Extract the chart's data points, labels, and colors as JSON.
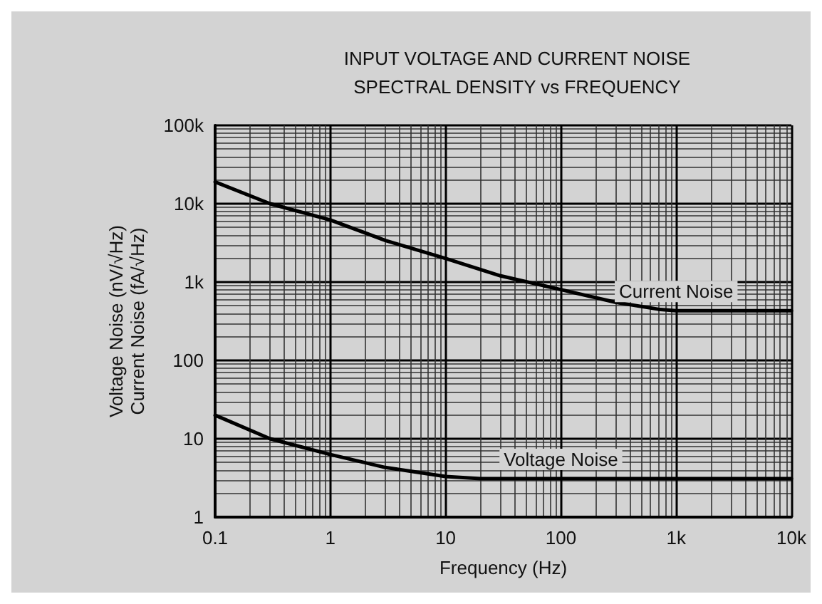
{
  "chart_data": {
    "type": "line",
    "title": "INPUT VOLTAGE AND CURRENT NOISE\nSPECTRAL DENSITY vs FREQUENCY",
    "xlabel": "Frequency (Hz)",
    "ylabel": "Voltage Noise (nV/√Hz)\nCurrent Noise (fA/√Hz)",
    "log": "xy",
    "grid": true,
    "legend": false,
    "marker": "none",
    "line_style": "solid",
    "xlim": [
      0.1,
      10000
    ],
    "xticks": [
      0.1,
      1,
      10,
      100,
      {
        "value": 1000,
        "label": "1k"
      },
      {
        "value": 10000,
        "label": "10k"
      }
    ],
    "ylim": [
      1,
      100000
    ],
    "yticks": [
      1,
      10,
      100,
      {
        "value": 1000,
        "label": "1k"
      },
      {
        "value": 10000,
        "label": "10k"
      },
      {
        "value": 100000,
        "label": "100k"
      }
    ],
    "series": [
      {
        "name": "Current Noise",
        "color": "#000000",
        "x": [
          0.1,
          0.3,
          1,
          3,
          10,
          30,
          100,
          300,
          700,
          1000,
          3000,
          10000
        ],
        "values": [
          19000,
          10000,
          6200,
          3400,
          2000,
          1200,
          800,
          550,
          450,
          430,
          430,
          430
        ]
      },
      {
        "name": "Voltage Noise",
        "color": "#000000",
        "x": [
          0.1,
          0.3,
          1,
          3,
          10,
          20,
          50,
          100,
          1000,
          10000
        ],
        "values": [
          20,
          10,
          6.3,
          4.3,
          3.3,
          3.1,
          3.1,
          3.1,
          3.1,
          3.1
        ]
      }
    ]
  }
}
